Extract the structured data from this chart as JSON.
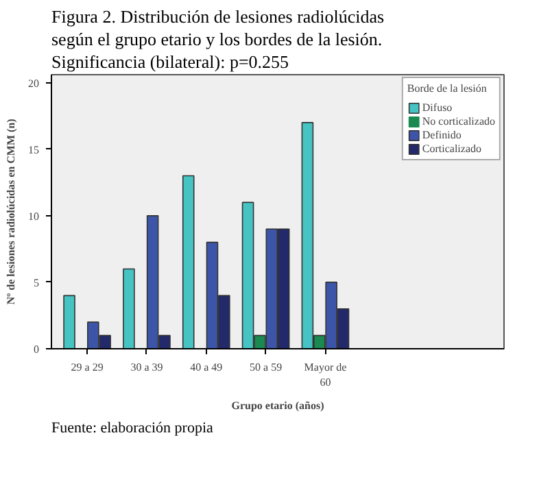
{
  "chart_data": {
    "type": "bar",
    "title": "Figura 2. Distribución de lesiones radiolúcidas según el grupo etario y los bordes de la lesión. Significancia (bilateral): p=0.255",
    "xlabel": "Grupo etario (años)",
    "ylabel": "Nº de lesiones radiolúcidas en CMM (n)",
    "legend_title": "Borde de la lesión",
    "categories": [
      "29 a 29",
      "30 a 39",
      "40 a 49",
      "50 a 59",
      "Mayor de 60"
    ],
    "series": [
      {
        "name": "Difuso",
        "color": "#46c3c3",
        "values": [
          4,
          6,
          13,
          11,
          17
        ]
      },
      {
        "name": "No corticalizado",
        "color": "#1a8a50",
        "values": [
          0,
          0,
          0,
          1,
          1
        ]
      },
      {
        "name": "Definido",
        "color": "#3d55a8",
        "values": [
          2,
          10,
          8,
          9,
          5
        ]
      },
      {
        "name": "Corticalizado",
        "color": "#232a6b",
        "values": [
          1,
          1,
          4,
          9,
          3
        ]
      }
    ],
    "ylim": [
      0,
      20.6
    ],
    "yticks": [
      0,
      5,
      10,
      15,
      20
    ],
    "grid": false,
    "legend": "right",
    "annotations": [
      "Fuente: elaboración propia"
    ]
  }
}
